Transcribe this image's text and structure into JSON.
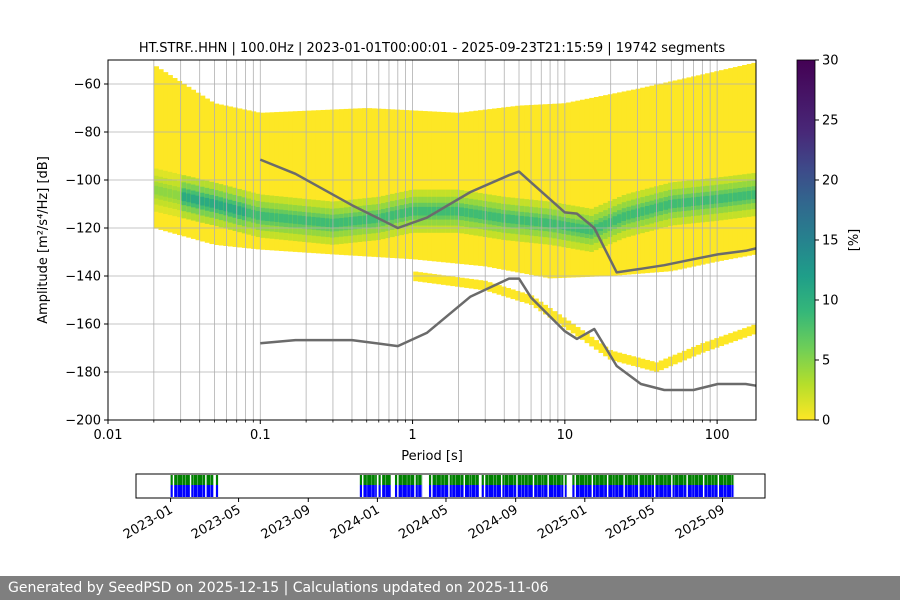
{
  "chart_data": {
    "type": "heatmap",
    "title": "HT.STRF..HHN | 100.0Hz | 2023-01-01T00:00:01 - 2025-09-23T21:15:59 | 19742 segments",
    "xlabel": "Period [s]",
    "ylabel": "Amplitude [m²/s⁴/Hz] [dB]",
    "xscale": "log",
    "xlim": [
      0.01,
      180
    ],
    "ylim": [
      -200,
      -50
    ],
    "xticks": [
      0.01,
      0.1,
      1,
      10,
      100
    ],
    "xtick_labels": [
      "0.01",
      "0.1",
      "1",
      "10",
      "100"
    ],
    "yticks": [
      -200,
      -180,
      -160,
      -140,
      -120,
      -100,
      -80,
      -60
    ],
    "ytick_labels": [
      "−200",
      "−180",
      "−160",
      "−140",
      "−120",
      "−100",
      "−80",
      "−60"
    ],
    "grid": true,
    "colorbar": {
      "label": "[%]",
      "range": [
        0,
        30
      ],
      "ticks": [
        0,
        5,
        10,
        15,
        20,
        25,
        30
      ],
      "tick_labels": [
        "0",
        "5",
        "10",
        "15",
        "20",
        "25",
        "30"
      ],
      "colormap": "viridis"
    },
    "density": {
      "period_range": [
        0.02,
        180
      ],
      "main_band_center": [
        [
          0.02,
          -104
        ],
        [
          0.05,
          -110
        ],
        [
          0.1,
          -115
        ],
        [
          0.3,
          -118
        ],
        [
          0.6,
          -116
        ],
        [
          1,
          -113
        ],
        [
          2,
          -113
        ],
        [
          4,
          -116
        ],
        [
          8,
          -118
        ],
        [
          15,
          -121
        ],
        [
          25,
          -115
        ],
        [
          50,
          -110
        ],
        [
          100,
          -108
        ],
        [
          180,
          -106
        ]
      ],
      "envelope_upper": [
        [
          0.02,
          -52
        ],
        [
          0.05,
          -68
        ],
        [
          0.1,
          -72
        ],
        [
          0.5,
          -70
        ],
        [
          2,
          -72
        ],
        [
          5,
          -69
        ],
        [
          10,
          -68
        ],
        [
          30,
          -62
        ],
        [
          80,
          -56
        ],
        [
          180,
          -51
        ]
      ],
      "envelope_lower": [
        [
          0.02,
          -120
        ],
        [
          0.05,
          -127
        ],
        [
          0.1,
          -129
        ],
        [
          0.3,
          -131
        ],
        [
          1,
          -133
        ],
        [
          3,
          -136
        ],
        [
          8,
          -141
        ],
        [
          20,
          -140
        ],
        [
          50,
          -138
        ],
        [
          100,
          -134
        ],
        [
          180,
          -131
        ]
      ],
      "secondary_band": [
        [
          1,
          -140
        ],
        [
          3,
          -144
        ],
        [
          6,
          -150
        ],
        [
          12,
          -163
        ],
        [
          20,
          -173
        ],
        [
          40,
          -178
        ],
        [
          80,
          -170
        ],
        [
          180,
          -162
        ]
      ],
      "peak_percent": 12
    },
    "reference_curves": [
      {
        "name": "upper-noise-model",
        "color": "#6b6b6b",
        "points": [
          [
            0.1,
            -91.5
          ],
          [
            0.17,
            -97.4
          ],
          [
            0.4,
            -110.5
          ],
          [
            0.8,
            -120
          ],
          [
            1.24,
            -115.7
          ],
          [
            2.4,
            -105
          ],
          [
            4.3,
            -98
          ],
          [
            5.0,
            -96.5
          ],
          [
            6.0,
            -101
          ],
          [
            10,
            -113.5
          ],
          [
            12,
            -114
          ],
          [
            15.6,
            -120
          ],
          [
            21.9,
            -138.5
          ],
          [
            31.6,
            -137
          ],
          [
            45,
            -135.5
          ],
          [
            70,
            -133
          ],
          [
            101,
            -131
          ],
          [
            154,
            -129.5
          ],
          [
            180,
            -128.5
          ]
        ]
      },
      {
        "name": "lower-noise-model",
        "color": "#6b6b6b",
        "points": [
          [
            0.1,
            -168
          ],
          [
            0.17,
            -166.7
          ],
          [
            0.4,
            -166.7
          ],
          [
            0.8,
            -169.2
          ],
          [
            1.24,
            -163.7
          ],
          [
            2.4,
            -148.6
          ],
          [
            4.3,
            -141.1
          ],
          [
            5.0,
            -141.1
          ],
          [
            6.0,
            -149
          ],
          [
            10,
            -163
          ],
          [
            12,
            -166.2
          ],
          [
            15.6,
            -162.1
          ],
          [
            21.9,
            -177.5
          ],
          [
            31.6,
            -185
          ],
          [
            45,
            -187.5
          ],
          [
            70,
            -187.5
          ],
          [
            101,
            -185
          ],
          [
            154,
            -185
          ],
          [
            180,
            -185.7
          ]
        ]
      }
    ]
  },
  "timeline": {
    "range": [
      "2022-11-01",
      "2025-11-15"
    ],
    "tick_labels": [
      "2023-01",
      "2023-05",
      "2023-09",
      "2024-01",
      "2024-05",
      "2024-09",
      "2025-01",
      "2025-05",
      "2025-09"
    ],
    "tick_dates": [
      "2023-01-01",
      "2023-05-01",
      "2023-09-01",
      "2024-01-01",
      "2024-05-01",
      "2024-09-01",
      "2025-01-01",
      "2025-05-01",
      "2025-09-01"
    ],
    "available_color": "#0000ff",
    "processed_color": "#008000",
    "segments": [
      [
        "2023-01-01",
        "2023-03-18"
      ],
      [
        "2023-03-22",
        "2023-03-27"
      ],
      [
        "2023-12-01",
        "2023-12-31"
      ],
      [
        "2024-01-03",
        "2024-01-25"
      ],
      [
        "2024-02-01",
        "2024-03-20"
      ],
      [
        "2024-04-01",
        "2024-06-28"
      ],
      [
        "2024-07-03",
        "2024-11-30"
      ],
      [
        "2024-12-10",
        "2025-09-23"
      ]
    ]
  },
  "footer": {
    "text": "Generated by SeedPSD on 2025-12-15 | Calculations updated on 2025-11-06"
  }
}
